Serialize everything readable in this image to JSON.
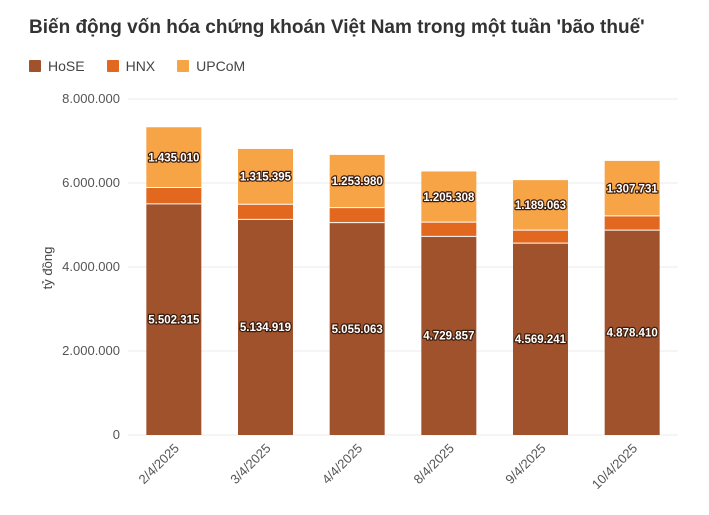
{
  "chart_data": {
    "type": "bar",
    "stacked": true,
    "title": "Biến động vốn hóa chứng khoán Việt Nam trong một tuần 'bão thuế'",
    "ylabel": "tỷ đồng",
    "xlabel": "",
    "ylim": [
      0,
      8000000
    ],
    "yticks": [
      "0",
      "2.000.000",
      "4.000.000",
      "6.000.000",
      "8.000.000"
    ],
    "ytick_values": [
      0,
      2000000,
      4000000,
      6000000,
      8000000
    ],
    "categories": [
      "2/4/2025",
      "3/4/2025",
      "4/4/2025",
      "8/4/2025",
      "9/4/2025",
      "10/4/2025"
    ],
    "series": [
      {
        "name": "HoSE",
        "color": "#a0522d",
        "values": [
          5502315,
          5134919,
          5055063,
          4729857,
          4569241,
          4878410
        ],
        "labels": [
          "5.502.315",
          "5.134.919",
          "5.055.063",
          "4.729.857",
          "4.569.241",
          "4.878.410"
        ]
      },
      {
        "name": "HNX",
        "color": "#e2671f",
        "values": [
          390000,
          360000,
          360000,
          340000,
          310000,
          340000
        ]
      },
      {
        "name": "UPCoM",
        "color": "#f7a446",
        "values": [
          1435010,
          1315395,
          1253980,
          1205308,
          1189063,
          1307731
        ],
        "labels": [
          "1.435.010",
          "1.315.395",
          "1.253.980",
          "1.205.308",
          "1.189.063",
          "1.307.731"
        ]
      }
    ],
    "grid": true,
    "legend_position": "top-left"
  }
}
